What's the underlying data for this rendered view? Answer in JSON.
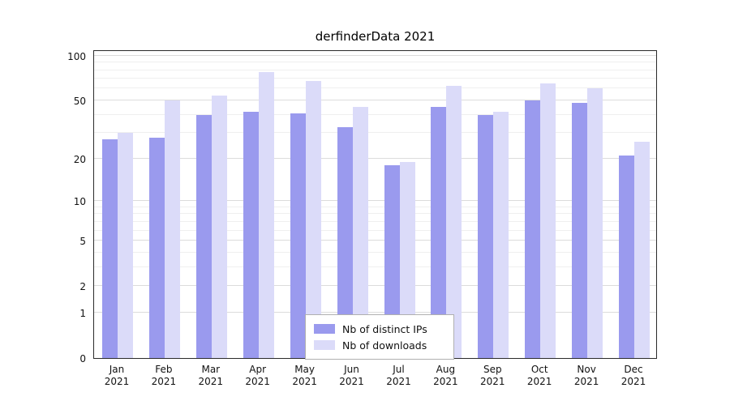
{
  "chart_data": {
    "type": "bar",
    "title": "derfinderData 2021",
    "categories": [
      "Jan",
      "Feb",
      "Mar",
      "Apr",
      "May",
      "Jun",
      "Jul",
      "Aug",
      "Sep",
      "Oct",
      "Nov",
      "Dec"
    ],
    "x_year": "2021",
    "series": [
      {
        "name": "Nb of distinct IPs",
        "color": "#9a9aee",
        "values": [
          27,
          28,
          40,
          42,
          41,
          33,
          18,
          45,
          40,
          50,
          48,
          21
        ]
      },
      {
        "name": "Nb of downloads",
        "color": "#dbdbf9",
        "values": [
          30,
          50,
          54,
          78,
          68,
          45,
          19,
          63,
          42,
          65,
          60,
          26
        ]
      }
    ],
    "y_ticks": [
      0,
      1,
      2,
      5,
      10,
      20,
      50,
      100
    ],
    "y_minor_ticks": [
      3,
      4,
      6,
      7,
      8,
      9,
      30,
      40,
      60,
      70,
      80,
      90
    ],
    "y_scale": "log",
    "ylim": [
      0,
      110
    ],
    "y_max": 110,
    "xlabel": "",
    "ylabel": "",
    "grid": true,
    "legend_position": "bottom-center",
    "background_color": "#ffffff"
  }
}
